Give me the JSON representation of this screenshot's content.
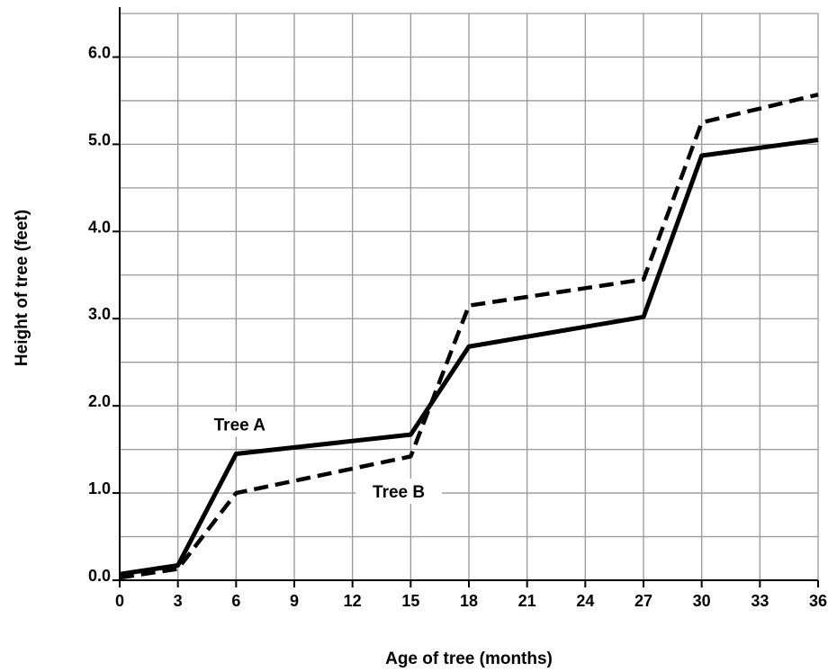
{
  "chart_data": {
    "type": "line",
    "title": "",
    "xlabel": "Age of tree (months)",
    "ylabel": "Height of tree (feet)",
    "xlim": [
      0,
      36
    ],
    "ylim": [
      0,
      6.5
    ],
    "x_ticks": [
      0,
      3,
      6,
      9,
      12,
      15,
      18,
      21,
      24,
      27,
      30,
      33,
      36
    ],
    "x_tick_labels": [
      "0",
      "3",
      "6",
      "9",
      "12",
      "15",
      "18",
      "21",
      "24",
      "27",
      "30",
      "33",
      "36"
    ],
    "y_ticks": [
      0,
      1,
      2,
      3,
      4,
      5,
      6
    ],
    "y_tick_labels": [
      "0.0",
      "1.0",
      "2.0",
      "3.0",
      "4.0",
      "5.0",
      "6.0"
    ],
    "grid": true,
    "grid_x_step": 3,
    "grid_y_step": 0.5,
    "series": [
      {
        "name": "Tree A",
        "style": "solid",
        "color": "#000000",
        "points": [
          [
            0,
            0.07
          ],
          [
            3,
            0.17
          ],
          [
            6,
            1.45
          ],
          [
            15,
            1.67
          ],
          [
            18,
            2.68
          ],
          [
            27,
            3.02
          ],
          [
            30,
            4.87
          ],
          [
            36,
            5.05
          ]
        ]
      },
      {
        "name": "Tree B",
        "style": "dashed",
        "color": "#000000",
        "points": [
          [
            0,
            0.03
          ],
          [
            3,
            0.13
          ],
          [
            6,
            1.0
          ],
          [
            15,
            1.42
          ],
          [
            18,
            3.15
          ],
          [
            27,
            3.45
          ],
          [
            30,
            5.25
          ],
          [
            36,
            5.57
          ]
        ]
      }
    ]
  }
}
